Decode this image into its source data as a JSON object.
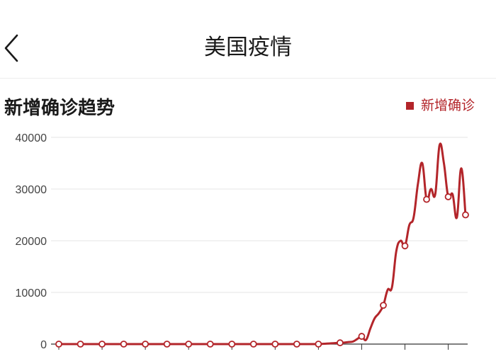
{
  "header": {
    "back_icon": "chevron-left-icon",
    "title": "美国疫情"
  },
  "section": {
    "title": "新增确诊趋势"
  },
  "legend": {
    "label": "新增确诊",
    "color": "#b3252a"
  },
  "chart_data": {
    "type": "line",
    "title": "新增确诊趋势",
    "series": [
      {
        "name": "新增确诊",
        "color": "#b3252a",
        "values": [
          0,
          0,
          0,
          0,
          0,
          0,
          0,
          0,
          0,
          0,
          0,
          0,
          0,
          0,
          0,
          0,
          0,
          0,
          0,
          0,
          0,
          0,
          0,
          0,
          0,
          0,
          0,
          0,
          0,
          0,
          0,
          0,
          0,
          0,
          0,
          0,
          0,
          0,
          0,
          0,
          0,
          0,
          0,
          0,
          0,
          0,
          0,
          0,
          0,
          0,
          0,
          0,
          0,
          0,
          0,
          0,
          0,
          0,
          0,
          0,
          0,
          50,
          100,
          150,
          200,
          250,
          300,
          400,
          500,
          1000,
          1500,
          800,
          3000,
          5000,
          6000,
          7500,
          10500,
          11000,
          18000,
          20000,
          19000,
          23000,
          24500,
          31000,
          35000,
          28000,
          30000,
          29000,
          38500,
          35000,
          28500,
          29000,
          24500,
          34000,
          25000
        ]
      }
    ],
    "y_ticks": [
      "0",
      "10000",
      "20000",
      "30000",
      "40000"
    ],
    "ylim": [
      0,
      40000
    ],
    "grid": true,
    "legend_position": "top-right",
    "marker_every": 5
  }
}
